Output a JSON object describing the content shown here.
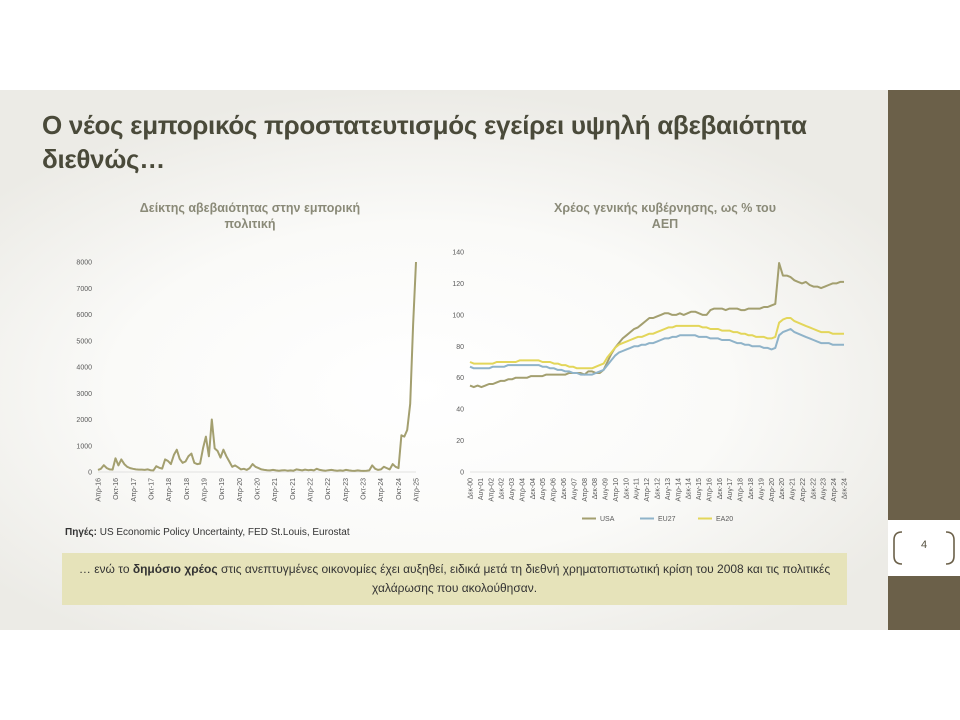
{
  "title": "Ο νέος εμπορικός προστατευτισμός εγείρει υψηλή αβεβαιότητα διεθνώς…",
  "page_number": "4",
  "source_label": "Πηγές:",
  "source_text": "US Economic Policy Uncertainty, FED St.Louis, Eurostat",
  "note": {
    "pre": "… ενώ το ",
    "bold": "δημόσιο χρέος",
    "post": " στις ανεπτυγμένες οικονομίες έχει αυξηθεί, ειδικά μετά τη διεθνή χρηματοπιστωτική κρίση του 2008 και τις πολιτικές χαλάρωσης που ακολούθησαν."
  },
  "colors": {
    "sidebar": "#6b6049",
    "note_bg": "#e6e3ba",
    "usa": "#a39f6f",
    "eu27": "#8fb3c9",
    "ea20": "#e3d65a"
  },
  "chart_data": [
    {
      "type": "line",
      "title": "Δείκτης αβεβαιότητας στην εμπορική πολιτική",
      "ylim": [
        0,
        8000
      ],
      "yticks": [
        "0",
        "1000",
        "2000",
        "3000",
        "4000",
        "5000",
        "6000",
        "7000",
        "8000"
      ],
      "xticks": [
        "Απρ-16",
        "Οκτ-16",
        "Απρ-17",
        "Οκτ-17",
        "Απρ-18",
        "Οκτ-18",
        "Απρ-19",
        "Οκτ-19",
        "Απρ-20",
        "Οκτ-20",
        "Απρ-21",
        "Οκτ-21",
        "Απρ-22",
        "Οκτ-22",
        "Απρ-23",
        "Οκτ-23",
        "Απρ-24",
        "Οκτ-24",
        "Απρ-25"
      ],
      "color": "#a39f6f",
      "values": [
        80,
        120,
        260,
        150,
        100,
        90,
        520,
        250,
        480,
        300,
        200,
        150,
        120,
        100,
        90,
        90,
        80,
        100,
        70,
        60,
        220,
        160,
        130,
        480,
        420,
        300,
        650,
        850,
        500,
        350,
        400,
        600,
        700,
        350,
        300,
        320,
        900,
        1350,
        600,
        2000,
        900,
        800,
        550,
        850,
        600,
        400,
        200,
        250,
        180,
        100,
        120,
        80,
        150,
        300,
        200,
        150,
        100,
        80,
        70,
        60,
        80,
        60,
        50,
        60,
        70,
        50,
        60,
        50,
        100,
        80,
        60,
        90,
        70,
        80,
        60,
        120,
        80,
        60,
        50,
        70,
        80,
        60,
        50,
        60,
        50,
        80,
        60,
        50,
        40,
        60,
        50,
        40,
        50,
        60,
        250,
        120,
        80,
        100,
        200,
        150,
        100,
        300,
        200,
        150,
        1400,
        1350,
        1600,
        2600,
        5600,
        8000
      ]
    },
    {
      "type": "line",
      "title": "Χρέος γενικής κυβέρνησης, ως % του ΑΕΠ",
      "ylim": [
        0,
        140
      ],
      "yticks": [
        "0",
        "20",
        "40",
        "60",
        "80",
        "100",
        "120",
        "140"
      ],
      "xticks": [
        "Δεκ-00",
        "Αυγ-01",
        "Απρ-02",
        "Δεκ-02",
        "Αυγ-03",
        "Απρ-04",
        "Δεκ-04",
        "Αυγ-05",
        "Απρ-06",
        "Δεκ-06",
        "Αυγ-07",
        "Απρ-08",
        "Δεκ-08",
        "Αυγ-09",
        "Απρ-10",
        "Δεκ-10",
        "Αυγ-11",
        "Απρ-12",
        "Δεκ-12",
        "Αυγ-13",
        "Απρ-14",
        "Δεκ-14",
        "Αυγ-15",
        "Απρ-16",
        "Δεκ-16",
        "Αυγ-17",
        "Απρ-18",
        "Δεκ-18",
        "Αυγ-19",
        "Απρ-20",
        "Δεκ-20",
        "Αυγ-21",
        "Απρ-22",
        "Δεκ-22",
        "Αυγ-23",
        "Απρ-24",
        "Δεκ-24"
      ],
      "series": [
        {
          "name": "USA",
          "color": "#a39f6f",
          "values": [
            55,
            54,
            55,
            54,
            55,
            56,
            56,
            57,
            58,
            58,
            59,
            59,
            60,
            60,
            60,
            60,
            61,
            61,
            61,
            61,
            62,
            62,
            62,
            62,
            62,
            62,
            63,
            63,
            63,
            63,
            62,
            64,
            64,
            63,
            63,
            65,
            70,
            75,
            79,
            82,
            85,
            87,
            89,
            91,
            92,
            94,
            96,
            98,
            98,
            99,
            100,
            101,
            101,
            100,
            100,
            101,
            100,
            101,
            102,
            102,
            101,
            100,
            100,
            103,
            104,
            104,
            104,
            103,
            104,
            104,
            104,
            103,
            103,
            104,
            104,
            104,
            104,
            105,
            105,
            106,
            107,
            133,
            125,
            125,
            124,
            122,
            121,
            120,
            121,
            119,
            118,
            118,
            117,
            118,
            119,
            120,
            120,
            121,
            121
          ]
        },
        {
          "name": "EU27",
          "color": "#8fb3c9",
          "values": [
            67,
            66,
            66,
            66,
            66,
            66,
            67,
            67,
            67,
            67,
            68,
            68,
            68,
            68,
            68,
            68,
            68,
            68,
            68,
            67,
            67,
            66,
            66,
            65,
            65,
            64,
            64,
            63,
            63,
            62,
            62,
            62,
            62,
            63,
            64,
            65,
            68,
            71,
            74,
            76,
            77,
            78,
            79,
            80,
            80,
            81,
            81,
            82,
            82,
            83,
            84,
            85,
            85,
            86,
            86,
            87,
            87,
            87,
            87,
            87,
            86,
            86,
            86,
            85,
            85,
            85,
            84,
            84,
            84,
            83,
            82,
            82,
            81,
            81,
            80,
            80,
            80,
            79,
            79,
            78,
            79,
            87,
            89,
            90,
            91,
            89,
            88,
            87,
            86,
            85,
            84,
            83,
            82,
            82,
            82,
            81,
            81,
            81,
            81
          ]
        },
        {
          "name": "EA20",
          "color": "#e3d65a",
          "values": [
            70,
            69,
            69,
            69,
            69,
            69,
            69,
            70,
            70,
            70,
            70,
            70,
            70,
            71,
            71,
            71,
            71,
            71,
            71,
            70,
            70,
            70,
            69,
            69,
            68,
            68,
            67,
            67,
            66,
            66,
            66,
            66,
            66,
            67,
            68,
            69,
            73,
            76,
            79,
            81,
            82,
            83,
            84,
            85,
            86,
            86,
            87,
            88,
            88,
            89,
            90,
            91,
            92,
            92,
            93,
            93,
            93,
            93,
            93,
            93,
            93,
            92,
            92,
            91,
            91,
            91,
            90,
            90,
            90,
            89,
            89,
            88,
            88,
            87,
            87,
            86,
            86,
            86,
            85,
            85,
            86,
            95,
            97,
            98,
            98,
            96,
            95,
            94,
            93,
            92,
            91,
            90,
            89,
            89,
            89,
            88,
            88,
            88,
            88
          ]
        }
      ]
    }
  ]
}
